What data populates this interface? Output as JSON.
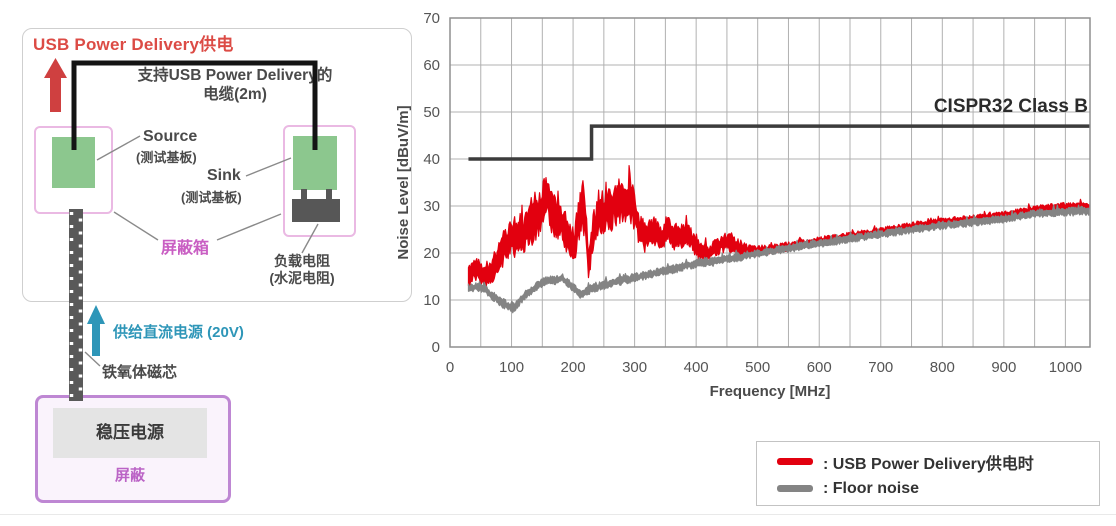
{
  "diagram": {
    "title": "USB Power Delivery供电",
    "cable_label_line1": "支持USB Power Delivery的",
    "cable_label_line2": "电缆(2m)",
    "source_label": "Source",
    "source_sub": "(测试基板)",
    "sink_label": "Sink",
    "sink_sub": "(测试基板)",
    "shield_box_label": "屏蔽箱",
    "load_resistor_line1": "负载电阻",
    "load_resistor_line2": "(水泥电阻)",
    "dc_supply_label": "供给直流电源 (20V)",
    "ferrite_label": "铁氧体磁芯",
    "psu_label": "稳压电源",
    "psu_shield_label": "屏蔽",
    "colors": {
      "title_red": "#dc4b45",
      "arrow_red": "#cf4040",
      "teal": "#2e96b8",
      "shield_pink": "#eab9e3",
      "purple": "#be87d3",
      "board_green": "#8cc78e",
      "resistor_gray": "#575757"
    }
  },
  "chart_data": {
    "type": "line",
    "x_label": "Frequency [MHz]",
    "y_label": "Noise Level [dBuV/m]",
    "x_ticks": [
      0,
      100,
      200,
      300,
      400,
      500,
      600,
      700,
      800,
      900,
      1000
    ],
    "y_ticks": [
      0,
      10,
      20,
      30,
      40,
      50,
      60,
      70
    ],
    "x_minor_step": 50,
    "x_max": 1040,
    "y_max": 70,
    "grid": "on",
    "legend_position": "bottom-right-outside",
    "limit_line": {
      "label": "CISPR32 Class B",
      "color": "#3c3c3c",
      "points": [
        [
          30,
          40
        ],
        [
          230,
          40
        ],
        [
          230,
          47
        ],
        [
          1040,
          47
        ]
      ]
    },
    "series": [
      {
        "name": "USB Power Delivery供电时",
        "color": "#e2000f",
        "points_format": [
          "MHz",
          "dBuV/m mid",
          "half-band"
        ],
        "points": [
          [
            30,
            15,
            3
          ],
          [
            40,
            17,
            3
          ],
          [
            50,
            15.5,
            2.5
          ],
          [
            60,
            15,
            2.5
          ],
          [
            70,
            16,
            3
          ],
          [
            80,
            19,
            3.5
          ],
          [
            90,
            22,
            4
          ],
          [
            100,
            23,
            4.5
          ],
          [
            110,
            24,
            4.5
          ],
          [
            120,
            24,
            4.5
          ],
          [
            130,
            26,
            5
          ],
          [
            140,
            28,
            5.5
          ],
          [
            150,
            30,
            5.5
          ],
          [
            158,
            31.5,
            5
          ],
          [
            165,
            29,
            5
          ],
          [
            175,
            26.5,
            4.5
          ],
          [
            185,
            26,
            4.5
          ],
          [
            195,
            22,
            4.5
          ],
          [
            202,
            21,
            4.5
          ],
          [
            208,
            26,
            5
          ],
          [
            214,
            29.5,
            5
          ],
          [
            220,
            28,
            5.5
          ],
          [
            225,
            17,
            3
          ],
          [
            232,
            24,
            4.5
          ],
          [
            240,
            27,
            5
          ],
          [
            250,
            28.5,
            5.5
          ],
          [
            260,
            29.5,
            5.5
          ],
          [
            270,
            30.5,
            5
          ],
          [
            280,
            31.5,
            5
          ],
          [
            290,
            30.5,
            5
          ],
          [
            300,
            29,
            4.5
          ],
          [
            308,
            25,
            4
          ],
          [
            315,
            23.5,
            3.5
          ],
          [
            325,
            24,
            3.5
          ],
          [
            335,
            24.5,
            3.5
          ],
          [
            345,
            23,
            3
          ],
          [
            355,
            26,
            3
          ],
          [
            362,
            23.5,
            3
          ],
          [
            372,
            23.5,
            2.8
          ],
          [
            382,
            24,
            2.6
          ],
          [
            392,
            23,
            2.4
          ],
          [
            402,
            21,
            2.2
          ],
          [
            412,
            20,
            2
          ],
          [
            422,
            20,
            2
          ],
          [
            432,
            21,
            2
          ],
          [
            442,
            22,
            2.2
          ],
          [
            452,
            22.5,
            2.2
          ],
          [
            462,
            21.5,
            2
          ],
          [
            472,
            21,
            1.8
          ],
          [
            485,
            20.5,
            1.4
          ],
          [
            500,
            20.5,
            1.1
          ],
          [
            530,
            21,
            1
          ],
          [
            550,
            21.4,
            1
          ],
          [
            575,
            22,
            0.9
          ],
          [
            600,
            22.6,
            0.9
          ],
          [
            625,
            23.1,
            0.9
          ],
          [
            650,
            23.6,
            0.9
          ],
          [
            675,
            24.1,
            0.9
          ],
          [
            700,
            24.6,
            0.9
          ],
          [
            725,
            25.1,
            0.9
          ],
          [
            750,
            25.6,
            1
          ],
          [
            775,
            26.1,
            0.9
          ],
          [
            800,
            26.6,
            0.9
          ],
          [
            825,
            26.9,
            0.9
          ],
          [
            850,
            27.2,
            0.9
          ],
          [
            875,
            27.6,
            0.9
          ],
          [
            900,
            28,
            0.9
          ],
          [
            925,
            28.6,
            0.9
          ],
          [
            950,
            29.2,
            0.9
          ],
          [
            975,
            29.5,
            1
          ],
          [
            1000,
            29.8,
            1
          ],
          [
            1038,
            29.9,
            1
          ]
        ]
      },
      {
        "name": "Floor noise",
        "color": "#848484",
        "points_format": [
          "MHz",
          "dBuV/m mid",
          "half-band"
        ],
        "points": [
          [
            30,
            12.5,
            1
          ],
          [
            45,
            12.8,
            1
          ],
          [
            55,
            12.4,
            1
          ],
          [
            65,
            11.2,
            1
          ],
          [
            75,
            10.4,
            1
          ],
          [
            85,
            9.4,
            1.1
          ],
          [
            95,
            8.6,
            1.1
          ],
          [
            103,
            8.3,
            1.1
          ],
          [
            112,
            9.6,
            1
          ],
          [
            122,
            11,
            1
          ],
          [
            132,
            12,
            1
          ],
          [
            142,
            13,
            1
          ],
          [
            152,
            13.8,
            1
          ],
          [
            162,
            14.2,
            1
          ],
          [
            172,
            14.2,
            1
          ],
          [
            182,
            14.7,
            1
          ],
          [
            192,
            13.6,
            1
          ],
          [
            202,
            12.4,
            1
          ],
          [
            212,
            11.3,
            1
          ],
          [
            220,
            11.6,
            1
          ],
          [
            230,
            12.4,
            1
          ],
          [
            240,
            12.8,
            1
          ],
          [
            252,
            13.2,
            1
          ],
          [
            265,
            13.7,
            1
          ],
          [
            280,
            14.2,
            1
          ],
          [
            300,
            14.8,
            1
          ],
          [
            320,
            15.3,
            1
          ],
          [
            340,
            15.9,
            1
          ],
          [
            360,
            16.4,
            1
          ],
          [
            380,
            17.2,
            1
          ],
          [
            400,
            17.8,
            1
          ],
          [
            420,
            18,
            1
          ],
          [
            440,
            18.4,
            1
          ],
          [
            460,
            18.9,
            1
          ],
          [
            480,
            19.4,
            1
          ],
          [
            500,
            19.9,
            0.9
          ],
          [
            525,
            20.5,
            0.9
          ],
          [
            550,
            21,
            0.9
          ],
          [
            575,
            21.5,
            0.9
          ],
          [
            600,
            22,
            0.9
          ],
          [
            625,
            22.5,
            0.9
          ],
          [
            650,
            23,
            0.9
          ],
          [
            675,
            23.5,
            0.9
          ],
          [
            700,
            24,
            0.9
          ],
          [
            725,
            24.5,
            0.9
          ],
          [
            750,
            25,
            0.9
          ],
          [
            775,
            25.4,
            0.9
          ],
          [
            800,
            25.9,
            0.9
          ],
          [
            825,
            26.2,
            0.9
          ],
          [
            850,
            26.5,
            0.9
          ],
          [
            875,
            26.9,
            0.9
          ],
          [
            900,
            27.3,
            0.9
          ],
          [
            925,
            27.8,
            0.9
          ],
          [
            950,
            28.3,
            0.9
          ],
          [
            975,
            28.6,
            0.9
          ],
          [
            1000,
            28.8,
            1
          ],
          [
            1038,
            29,
            1
          ]
        ]
      }
    ],
    "legend": [
      {
        "color": "#e2000f",
        "label": ": USB Power Delivery供电时"
      },
      {
        "color": "#848484",
        "label": ": Floor noise"
      }
    ],
    "colors": {
      "grid": "#b0b0b0",
      "border": "#8f8f8f"
    }
  }
}
